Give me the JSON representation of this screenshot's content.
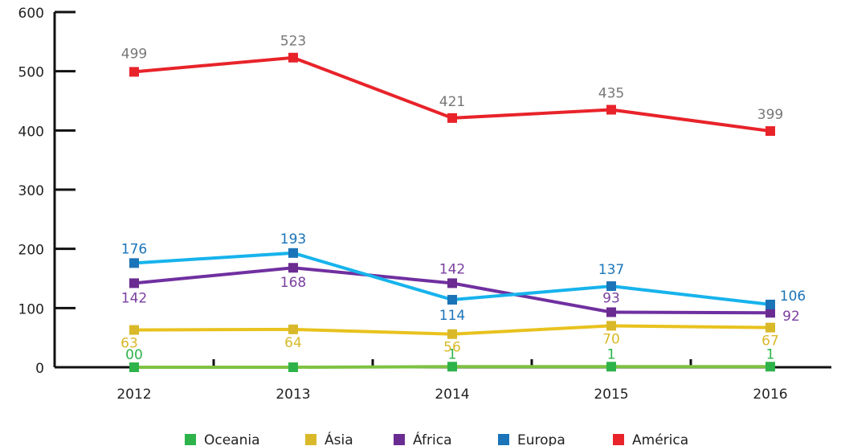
{
  "chart_data": {
    "type": "line",
    "categories": [
      "2012",
      "2013",
      "2014",
      "2015",
      "2016"
    ],
    "ylim": [
      0,
      600
    ],
    "yticks": [
      0,
      100,
      200,
      300,
      400,
      500,
      600
    ],
    "legend": "bottom",
    "series": [
      {
        "name": "Oceania",
        "color": "#7dc242",
        "marker_color": "#2db34a",
        "label_color": "#2db34a",
        "values": [
          0,
          0,
          1,
          1,
          1
        ],
        "value_labels": [
          "00",
          null,
          "1",
          "1",
          "1"
        ]
      },
      {
        "name": "Ásia",
        "color": "#e8c21e",
        "marker_color": "#d9b92a",
        "label_color": "#d9b92a",
        "values": [
          63,
          64,
          56,
          70,
          67
        ]
      },
      {
        "name": "África",
        "color": "#7030a0",
        "marker_color": "#6a2c91",
        "label_color": "#7a3fa0",
        "values": [
          142,
          168,
          142,
          93,
          92
        ]
      },
      {
        "name": "Europa",
        "color": "#17b3ec",
        "marker_color": "#1b74b8",
        "label_color": "#1b74b8",
        "values": [
          176,
          193,
          114,
          137,
          106
        ]
      },
      {
        "name": "América",
        "color": "#e8232a",
        "marker_color": "#e8232a",
        "label_color": "#777777",
        "values": [
          499,
          523,
          421,
          435,
          399
        ]
      }
    ]
  }
}
